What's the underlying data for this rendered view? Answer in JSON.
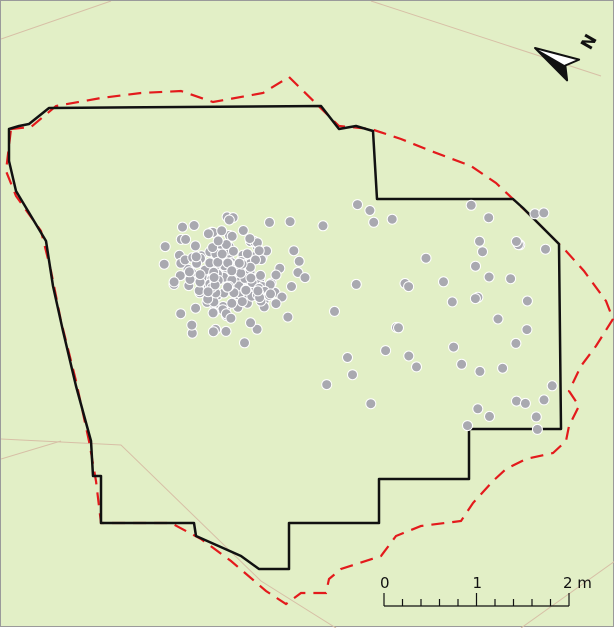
{
  "map": {
    "background_color": "#e2efc6",
    "trail_color": "#d7bfa6",
    "boundary_solid_color": "#111111",
    "boundary_dashed_color": "#e31a1c",
    "point_fill_color": "#a9a9b0",
    "point_stroke_color": "#ffffff",
    "point_count": 260
  },
  "north_arrow": {
    "icon": "north-arrow-icon",
    "letter": "N"
  },
  "scale_bar": {
    "labels": [
      "0",
      "1",
      "2 m"
    ],
    "major_divisions": 2,
    "minor_ticks_per_division": 5
  }
}
